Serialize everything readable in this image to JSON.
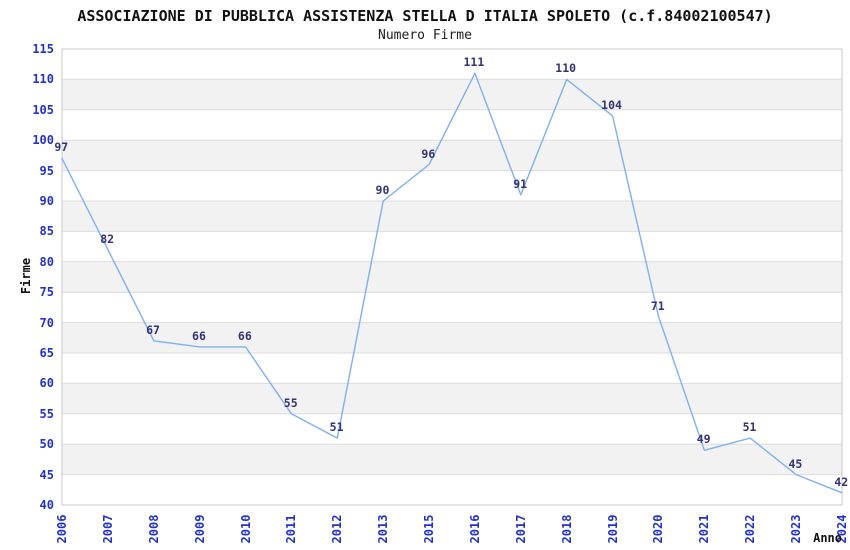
{
  "chart_data": {
    "type": "line",
    "title": "ASSOCIAZIONE DI PUBBLICA ASSISTENZA STELLA D ITALIA SPOLETO (c.f.84002100547)",
    "subtitle": "Numero Firme",
    "xlabel": "Anno",
    "ylabel": "Firme",
    "categories": [
      "2006",
      "2007",
      "2008",
      "2009",
      "2010",
      "2011",
      "2012",
      "2013",
      "2015",
      "2016",
      "2017",
      "2018",
      "2019",
      "2020",
      "2021",
      "2022",
      "2023",
      "2024"
    ],
    "values": [
      97,
      82,
      67,
      66,
      66,
      55,
      51,
      90,
      96,
      111,
      91,
      110,
      104,
      71,
      49,
      51,
      45,
      42
    ],
    "ylim": [
      40,
      115
    ],
    "ytick_step": 5,
    "grid": true,
    "legend": "none",
    "banded_background": true,
    "colors": {
      "line": "#7fb0f2",
      "tick_label": "#2233cc",
      "data_label": "#333377",
      "band": "#f2f2f2",
      "gridline": "#dcdcdc",
      "plot_border": "#c8c8c8",
      "text": "#111111"
    }
  }
}
